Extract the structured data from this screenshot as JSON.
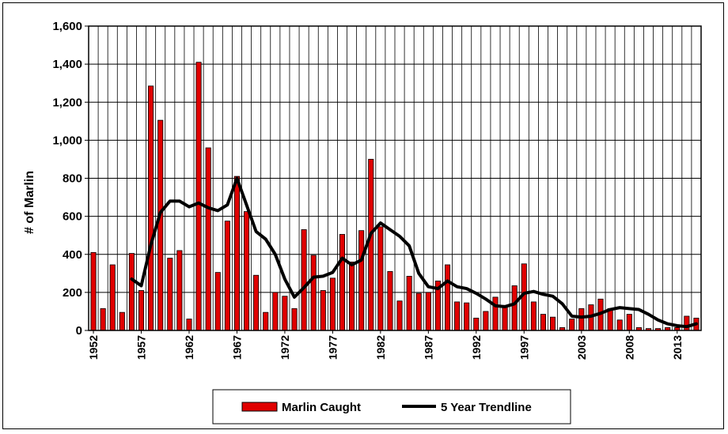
{
  "chart_data": {
    "type": "bar",
    "title": "",
    "xlabel": "",
    "ylabel": "# of Marlin",
    "ylim": [
      0,
      1600
    ],
    "yticks": [
      0,
      200,
      400,
      600,
      800,
      1000,
      1200,
      1400,
      1600
    ],
    "ytick_labels": [
      "0",
      "200",
      "400",
      "600",
      "800",
      "1,000",
      "1,200",
      "1,400",
      "1,600"
    ],
    "grid": true,
    "legend_position": "bottom-center",
    "categories": [
      1952,
      1953,
      1954,
      1955,
      1956,
      1957,
      1958,
      1959,
      1960,
      1961,
      1962,
      1963,
      1964,
      1965,
      1966,
      1967,
      1968,
      1969,
      1970,
      1971,
      1972,
      1973,
      1974,
      1975,
      1976,
      1977,
      1978,
      1979,
      1980,
      1981,
      1982,
      1983,
      1984,
      1985,
      1986,
      1987,
      1988,
      1989,
      1990,
      1991,
      1992,
      1993,
      1994,
      1995,
      1996,
      1997,
      1998,
      1999,
      2000,
      2001,
      2002,
      2003,
      2004,
      2005,
      2006,
      2007,
      2008,
      2009,
      2010,
      2011,
      2012,
      2013,
      2014,
      2015
    ],
    "xtick_labels": [
      "1952",
      "1957",
      "1962",
      "1967",
      "1972",
      "1977",
      "1982",
      "1987",
      "1992",
      "1997",
      "2003",
      "2008",
      "2013"
    ],
    "series": [
      {
        "name": "Marlin Caught",
        "type": "bar",
        "color": "#e00000",
        "values": [
          410,
          115,
          345,
          95,
          405,
          210,
          1285,
          1105,
          380,
          420,
          60,
          1410,
          960,
          305,
          575,
          810,
          625,
          290,
          95,
          200,
          180,
          115,
          530,
          395,
          210,
          275,
          505,
          360,
          525,
          900,
          545,
          310,
          155,
          285,
          195,
          200,
          260,
          345,
          150,
          145,
          65,
          100,
          175,
          130,
          235,
          350,
          150,
          85,
          70,
          15,
          60,
          115,
          135,
          165,
          115,
          55,
          85,
          15,
          10,
          10,
          15,
          15,
          75,
          65
        ]
      },
      {
        "name": "5 Year Trendline",
        "type": "line",
        "color": "#000000",
        "values": [
          null,
          null,
          null,
          null,
          270,
          235,
          450,
          620,
          680,
          680,
          650,
          670,
          645,
          630,
          660,
          800,
          660,
          520,
          480,
          400,
          270,
          175,
          225,
          280,
          285,
          305,
          380,
          345,
          370,
          510,
          565,
          530,
          495,
          445,
          300,
          230,
          220,
          260,
          230,
          220,
          195,
          165,
          130,
          125,
          140,
          195,
          205,
          190,
          180,
          140,
          75,
          70,
          75,
          90,
          110,
          120,
          115,
          110,
          85,
          55,
          35,
          25,
          20,
          35
        ]
      }
    ]
  }
}
